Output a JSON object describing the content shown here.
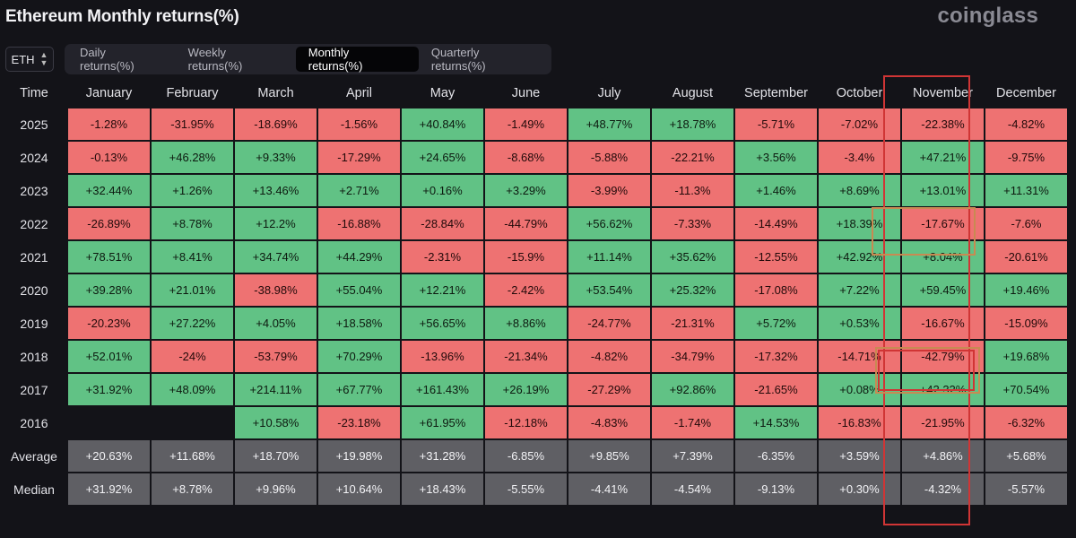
{
  "page": {
    "title": "Ethereum Monthly returns(%)",
    "brand": "coinglass"
  },
  "asset_selector": {
    "value": "ETH"
  },
  "tabs": [
    {
      "label": "Daily returns(%)",
      "active": false
    },
    {
      "label": "Weekly returns(%)",
      "active": false
    },
    {
      "label": "Monthly returns(%)",
      "active": true
    },
    {
      "label": "Quarterly returns(%)",
      "active": false
    }
  ],
  "table": {
    "headers": [
      "Time",
      "January",
      "February",
      "March",
      "April",
      "May",
      "June",
      "July",
      "August",
      "September",
      "October",
      "November",
      "December"
    ],
    "rows": [
      {
        "label": "2025",
        "type": "year",
        "values": [
          "-1.28%",
          "-31.95%",
          "-18.69%",
          "-1.56%",
          "+40.84%",
          "-1.49%",
          "+48.77%",
          "+18.78%",
          "-5.71%",
          "-7.02%",
          "-22.38%",
          "-4.82%"
        ]
      },
      {
        "label": "2024",
        "type": "year",
        "values": [
          "-0.13%",
          "+46.28%",
          "+9.33%",
          "-17.29%",
          "+24.65%",
          "-8.68%",
          "-5.88%",
          "-22.21%",
          "+3.56%",
          "-3.4%",
          "+47.21%",
          "-9.75%"
        ]
      },
      {
        "label": "2023",
        "type": "year",
        "values": [
          "+32.44%",
          "+1.26%",
          "+13.46%",
          "+2.71%",
          "+0.16%",
          "+3.29%",
          "-3.99%",
          "-11.3%",
          "+1.46%",
          "+8.69%",
          "+13.01%",
          "+11.31%"
        ]
      },
      {
        "label": "2022",
        "type": "year",
        "values": [
          "-26.89%",
          "+8.78%",
          "+12.2%",
          "-16.88%",
          "-28.84%",
          "-44.79%",
          "+56.62%",
          "-7.33%",
          "-14.49%",
          "+18.39%",
          "-17.67%",
          "-7.6%"
        ]
      },
      {
        "label": "2021",
        "type": "year",
        "values": [
          "+78.51%",
          "+8.41%",
          "+34.74%",
          "+44.29%",
          "-2.31%",
          "-15.9%",
          "+11.14%",
          "+35.62%",
          "-12.55%",
          "+42.92%",
          "+8.04%",
          "-20.61%"
        ]
      },
      {
        "label": "2020",
        "type": "year",
        "values": [
          "+39.28%",
          "+21.01%",
          "-38.98%",
          "+55.04%",
          "+12.21%",
          "-2.42%",
          "+53.54%",
          "+25.32%",
          "-17.08%",
          "+7.22%",
          "+59.45%",
          "+19.46%"
        ]
      },
      {
        "label": "2019",
        "type": "year",
        "values": [
          "-20.23%",
          "+27.22%",
          "+4.05%",
          "+18.58%",
          "+56.65%",
          "+8.86%",
          "-24.77%",
          "-21.31%",
          "+5.72%",
          "+0.53%",
          "-16.67%",
          "-15.09%"
        ]
      },
      {
        "label": "2018",
        "type": "year",
        "values": [
          "+52.01%",
          "-24%",
          "-53.79%",
          "+70.29%",
          "-13.96%",
          "-21.34%",
          "-4.82%",
          "-34.79%",
          "-17.32%",
          "-14.71%",
          "-42.79%",
          "+19.68%"
        ]
      },
      {
        "label": "2017",
        "type": "year",
        "values": [
          "+31.92%",
          "+48.09%",
          "+214.11%",
          "+67.77%",
          "+161.43%",
          "+26.19%",
          "-27.29%",
          "+92.86%",
          "-21.65%",
          "+0.08%",
          "+42.32%",
          "+70.54%"
        ]
      },
      {
        "label": "2016",
        "type": "year",
        "values": [
          "",
          "",
          "+10.58%",
          "-23.18%",
          "+61.95%",
          "-12.18%",
          "-4.83%",
          "-1.74%",
          "+14.53%",
          "-16.83%",
          "-21.95%",
          "-6.32%"
        ]
      },
      {
        "label": "Average",
        "type": "stat",
        "values": [
          "+20.63%",
          "+11.68%",
          "+18.70%",
          "+19.98%",
          "+31.28%",
          "-6.85%",
          "+9.85%",
          "+7.39%",
          "-6.35%",
          "+3.59%",
          "+4.86%",
          "+5.68%"
        ]
      },
      {
        "label": "Median",
        "type": "stat",
        "values": [
          "+31.92%",
          "+8.78%",
          "+9.96%",
          "+10.64%",
          "+18.43%",
          "-5.55%",
          "-4.41%",
          "-4.54%",
          "-9.13%",
          "+0.30%",
          "-4.32%",
          "-5.57%"
        ]
      }
    ]
  },
  "colors": {
    "positive": "#61c285",
    "negative": "#ee7272",
    "stat": "#5f5f64",
    "highlight_red": "#d03535",
    "highlight_orange": "#c88a52"
  }
}
